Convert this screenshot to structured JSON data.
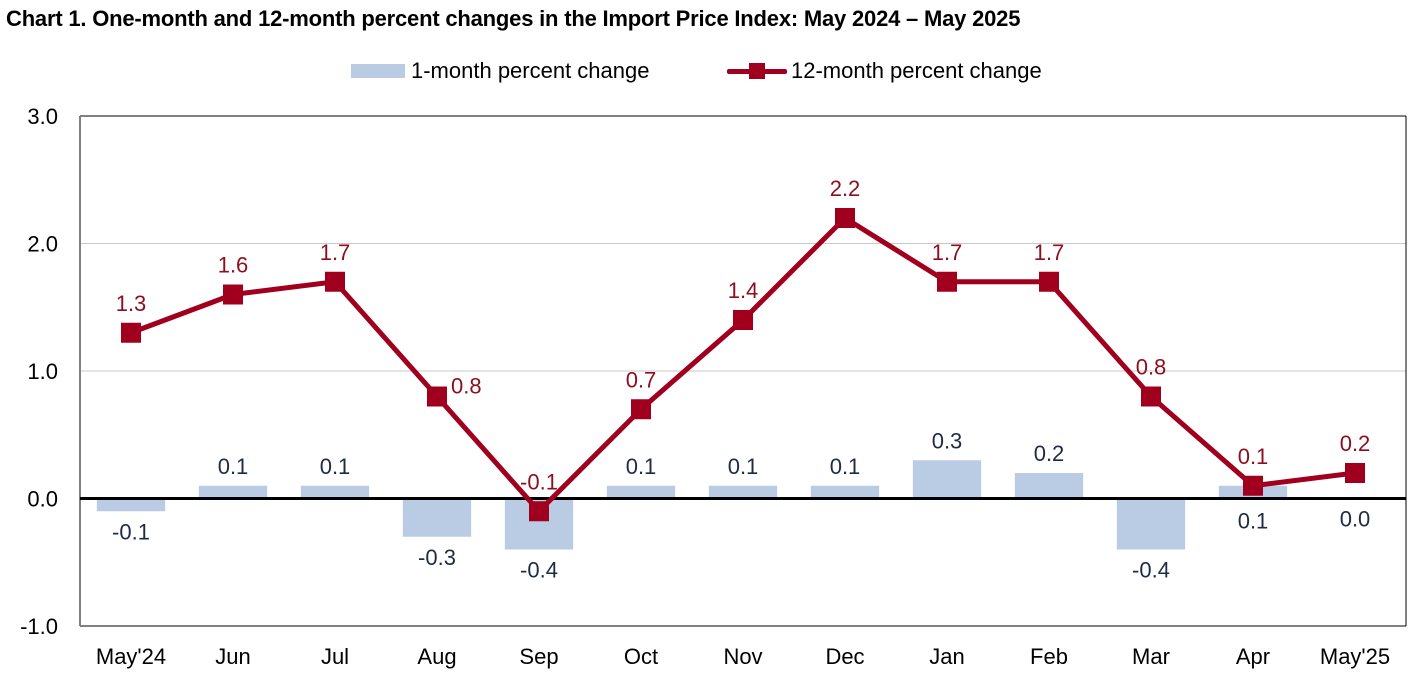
{
  "chart_data": {
    "type": "bar+line",
    "title": "Chart 1. One-month and 12-month percent changes in the Import Price Index: May 2024 – May 2025",
    "xlabel": "",
    "ylabel": "",
    "ylim": [
      -1.0,
      3.0
    ],
    "yticks": [
      "3.0",
      "2.0",
      "1.0",
      "0.0",
      "-1.0"
    ],
    "ytick_values": [
      3.0,
      2.0,
      1.0,
      0.0,
      -1.0
    ],
    "grid": true,
    "legend_placement": "top-center",
    "categories": [
      "May'24",
      "Jun",
      "Jul",
      "Aug",
      "Sep",
      "Oct",
      "Nov",
      "Dec",
      "Jan",
      "Feb",
      "Mar",
      "Apr",
      "May'25"
    ],
    "series": [
      {
        "name": "1-month percent change",
        "type": "bar",
        "color": "#b9cce4",
        "label_color": "#1f2a44",
        "values": [
          -0.1,
          0.1,
          0.1,
          -0.3,
          -0.4,
          0.1,
          0.1,
          0.1,
          0.3,
          0.2,
          -0.4,
          0.1,
          0.0
        ],
        "labels": [
          "-0.1",
          "0.1",
          "0.1",
          "-0.3",
          "-0.4",
          "0.1",
          "0.1",
          "0.1",
          "0.3",
          "0.2",
          "-0.4",
          "0.1",
          "0.0"
        ]
      },
      {
        "name": "12-month percent change",
        "type": "line",
        "color": "#a0001e",
        "label_color": "#8b0f1f",
        "values": [
          1.3,
          1.6,
          1.7,
          0.8,
          -0.1,
          0.7,
          1.4,
          2.2,
          1.7,
          1.7,
          0.8,
          0.1,
          0.2
        ],
        "labels": [
          "1.3",
          "1.6",
          "1.7",
          "0.8",
          "-0.1",
          "0.7",
          "1.4",
          "2.2",
          "1.7",
          "1.7",
          "0.8",
          "0.1",
          "0.2"
        ]
      }
    ]
  }
}
